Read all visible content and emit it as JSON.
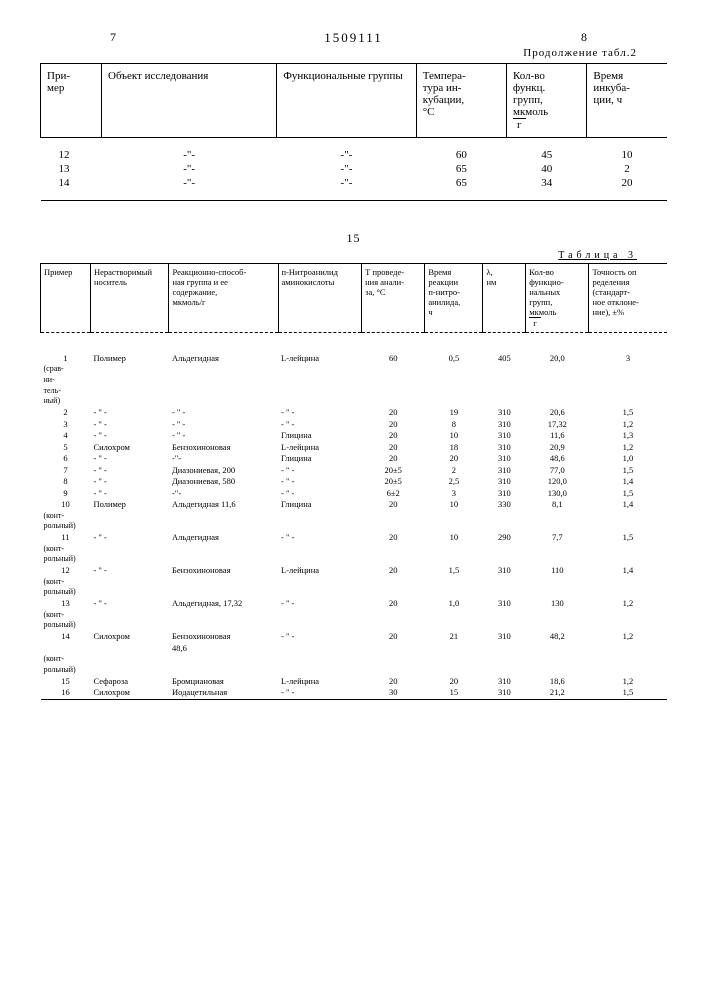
{
  "header": {
    "page_left": "7",
    "doc_number": "1509111",
    "page_right": "8",
    "continuation": "Продолжение табл.2"
  },
  "table2": {
    "columns": {
      "c1": "При-\nмер",
      "c2": "Объект исследования",
      "c3": "Функциональные группы",
      "c4": "Темпера-\nтура ин-\nкубации,\n°С",
      "c5": "Кол-во\nфункц.\nгрупп,\nмкмоль",
      "c5u": "г",
      "c6": "Время\nинкуба-\nции, ч"
    },
    "rows": [
      {
        "c1": "12",
        "c2": "-\"-",
        "c3": "-\"-",
        "c4": "60",
        "c5": "45",
        "c6": "10"
      },
      {
        "c1": "13",
        "c2": "-\"-",
        "c3": "-\"-",
        "c4": "65",
        "c5": "40",
        "c6": "2"
      },
      {
        "c1": "14",
        "c2": "-\"-",
        "c3": "-\"-",
        "c4": "65",
        "c5": "34",
        "c6": "20"
      }
    ]
  },
  "mid": "15",
  "table3": {
    "title": "Таблица 3",
    "columns": {
      "c1": "Пример",
      "c2": "Нерастворимый\nноситель",
      "c3": "Реакционно-способ-\nная группа и ее\nсодержание,\nмкмоль/г",
      "c4": "п-Нитроанилид\nаминокислоты",
      "c5": "Т проведе-\nния анали-\nза, °С",
      "c6": "Время\nреакции\nп-нитро-\nанилида,\nч",
      "c7": "λ,\nнм",
      "c8": "Кол-во\nфункцио-\nнальных\nгрупп,\nмкмоль",
      "c8u": "г",
      "c9": "Точность оп\nределения\n(стандарт-\nное отклоне-\nние), ±%"
    },
    "rows": [
      {
        "c1": "1",
        "n": "(срав-\nни-\nтель-\nный)",
        "c2": "Полимер",
        "c3": "Альдегидная",
        "c4": "L-лейцина",
        "c5": "60",
        "c6": "0,5",
        "c7": "405",
        "c8": "20,0",
        "c9": "3"
      },
      {
        "c1": "2",
        "c2": "- \" -",
        "c3": "- \" -",
        "c4": "- \" -",
        "c5": "20",
        "c6": "19",
        "c7": "310",
        "c8": "20,6",
        "c9": "1,5"
      },
      {
        "c1": "3",
        "c2": "- \" -",
        "c3": "- \" -",
        "c4": "- \" -",
        "c5": "20",
        "c6": "8",
        "c7": "310",
        "c8": "17,32",
        "c9": "1,2"
      },
      {
        "c1": "4",
        "c2": "- \" -",
        "c3": "- \" -",
        "c4": "Глицина",
        "c5": "20",
        "c6": "10",
        "c7": "310",
        "c8": "11,6",
        "c9": "1,3"
      },
      {
        "c1": "5",
        "c2": "Силохром",
        "c3": "Бензохиноновая",
        "c4": "L-лейцина",
        "c5": "20",
        "c6": "18",
        "c7": "310",
        "c8": "20,9",
        "c9": "1,2"
      },
      {
        "c1": "6",
        "c2": "- \" -",
        "c3": "-\"-",
        "c4": "Глицина",
        "c5": "20",
        "c6": "20",
        "c7": "310",
        "c8": "48,6",
        "c9": "1,0"
      },
      {
        "c1": "7",
        "c2": "- \" -",
        "c3": "Диазониевая, 200",
        "c4": "- \" -",
        "c5": "20±5",
        "c6": "2",
        "c7": "310",
        "c8": "77,0",
        "c9": "1,5"
      },
      {
        "c1": "8",
        "c2": "- \" -",
        "c3": "Диазониевая, 580",
        "c4": "- \" -",
        "c5": "20±5",
        "c6": "2,5",
        "c7": "310",
        "c8": "120,0",
        "c9": "1,4"
      },
      {
        "c1": "9",
        "c2": "- \" -",
        "c3": "-\"-",
        "c4": "- \" -",
        "c5": "6±2",
        "c6": "3",
        "c7": "310",
        "c8": "130,0",
        "c9": "1,5"
      },
      {
        "c1": "10",
        "n": "(конт-\nрольный)",
        "c2": "Полимер",
        "c3": "Альдегидная 11,6",
        "c4": "Глицина",
        "c5": "20",
        "c6": "10",
        "c7": "330",
        "c8": "8,1",
        "c9": "1,4"
      },
      {
        "c1": "11",
        "n": "(конт-\nрольный)",
        "c2": "- \" -",
        "c3": "Альдегидная",
        "c4": "- \" -",
        "c5": "20",
        "c6": "10",
        "c7": "290",
        "c8": "7,7",
        "c9": "1,5"
      },
      {
        "c1": "12",
        "n": "(конт-\nрольный)",
        "c2": "- \" -",
        "c3": "Бензохиноновая",
        "c4": "L-лейцина",
        "c5": "20",
        "c6": "1,5",
        "c7": "310",
        "c8": "110",
        "c9": "1,4"
      },
      {
        "c1": "13",
        "n": "(конт-\nрольный)",
        "c2": "- \" -",
        "c3": "Альдегидная, 17,32",
        "c4": "- \" -",
        "c5": "20",
        "c6": "1,0",
        "c7": "310",
        "c8": "130",
        "c9": "1,2"
      },
      {
        "c1": "14",
        "n": "(конт-\nрольный)",
        "c2": "Силохром",
        "c3": "Бензохиноновая\n48,6",
        "c4": "- \" -",
        "c5": "20",
        "c6": "21",
        "c7": "310",
        "c8": "48,2",
        "c9": "1,2"
      },
      {
        "c1": "15",
        "c2": "Сефароза",
        "c3": "Бромциановая",
        "c4": "L-лейцина",
        "c5": "20",
        "c6": "20",
        "c7": "310",
        "c8": "18,6",
        "c9": "1,2"
      },
      {
        "c1": "16",
        "c2": "Силохром",
        "c3": "Иодацетильная",
        "c4": "- \" -",
        "c5": "30",
        "c6": "15",
        "c7": "310",
        "c8": "21,2",
        "c9": "1,5"
      }
    ]
  }
}
